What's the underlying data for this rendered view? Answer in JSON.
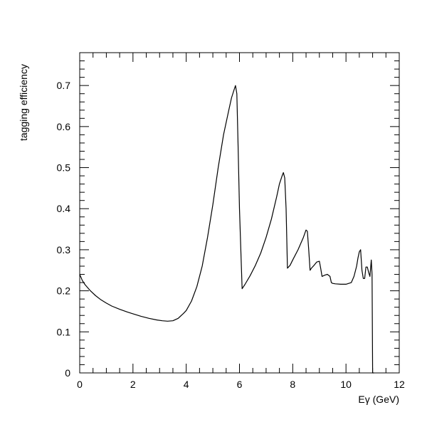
{
  "chart_data": {
    "type": "line",
    "title": "",
    "xlabel": "Eγ (GeV)",
    "ylabel": "tagging efficiency",
    "xlim": [
      0,
      12
    ],
    "ylim": [
      0,
      0.78
    ],
    "xticks": [
      0,
      2,
      4,
      6,
      8,
      10,
      12
    ],
    "xtick_labels": [
      "0",
      "2",
      "4",
      "6",
      "8",
      "10",
      "12"
    ],
    "yticks": [
      0,
      0.1,
      0.2,
      0.3,
      0.4,
      0.5,
      0.6,
      0.7
    ],
    "ytick_labels": [
      "0",
      "0.1",
      "0.2",
      "0.3",
      "0.4",
      "0.5",
      "0.6",
      "0.7"
    ],
    "grid": false,
    "series": [
      {
        "line_color": "#000000",
        "x": [
          0.0,
          0.1,
          0.2,
          0.4,
          0.6,
          0.8,
          1.0,
          1.2,
          1.5,
          1.8,
          2.0,
          2.3,
          2.6,
          2.9,
          3.1,
          3.3,
          3.5,
          3.7,
          3.9,
          4.0,
          4.2,
          4.4,
          4.6,
          4.8,
          5.0,
          5.2,
          5.4,
          5.6,
          5.7,
          5.8,
          5.85,
          5.9,
          5.95,
          6.0,
          6.1,
          6.2,
          6.4,
          6.6,
          6.8,
          7.0,
          7.2,
          7.4,
          7.5,
          7.6,
          7.65,
          7.7,
          7.75,
          7.8,
          7.9,
          8.0,
          8.2,
          8.4,
          8.5,
          8.55,
          8.6,
          8.65,
          8.7,
          8.8,
          8.9,
          9.0,
          9.05,
          9.1,
          9.2,
          9.3,
          9.4,
          9.45,
          9.5,
          9.6,
          9.8,
          10.0,
          10.2,
          10.3,
          10.4,
          10.45,
          10.5,
          10.55,
          10.6,
          10.65,
          10.7,
          10.75,
          10.8,
          10.85,
          10.9,
          10.95,
          10.98,
          11.0,
          11.05
        ],
        "y": [
          0.24,
          0.225,
          0.215,
          0.2,
          0.188,
          0.178,
          0.17,
          0.163,
          0.155,
          0.148,
          0.144,
          0.138,
          0.133,
          0.129,
          0.127,
          0.126,
          0.127,
          0.133,
          0.145,
          0.152,
          0.175,
          0.21,
          0.26,
          0.33,
          0.41,
          0.5,
          0.58,
          0.64,
          0.67,
          0.69,
          0.7,
          0.68,
          0.55,
          0.4,
          0.205,
          0.215,
          0.237,
          0.262,
          0.292,
          0.33,
          0.375,
          0.43,
          0.46,
          0.48,
          0.488,
          0.475,
          0.4,
          0.255,
          0.262,
          0.275,
          0.3,
          0.33,
          0.348,
          0.345,
          0.3,
          0.25,
          0.255,
          0.262,
          0.27,
          0.272,
          0.255,
          0.235,
          0.238,
          0.24,
          0.235,
          0.22,
          0.218,
          0.217,
          0.216,
          0.216,
          0.22,
          0.235,
          0.26,
          0.28,
          0.295,
          0.3,
          0.25,
          0.23,
          0.23,
          0.258,
          0.258,
          0.245,
          0.235,
          0.275,
          0.24,
          0.0,
          0.0
        ]
      }
    ]
  }
}
